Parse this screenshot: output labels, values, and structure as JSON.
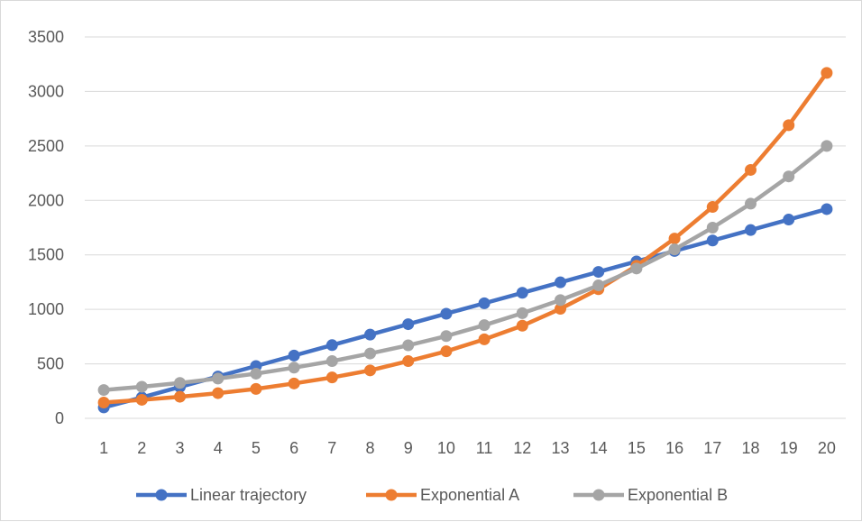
{
  "chart_data": {
    "type": "line",
    "title": "",
    "xlabel": "",
    "ylabel": "",
    "x": [
      1,
      2,
      3,
      4,
      5,
      6,
      7,
      8,
      9,
      10,
      11,
      12,
      13,
      14,
      15,
      16,
      17,
      18,
      19,
      20
    ],
    "ylim": [
      0,
      3500
    ],
    "yticks": [
      0,
      500,
      1000,
      1500,
      2000,
      2500,
      3000,
      3500
    ],
    "grid": "horizontal",
    "legend_position": "bottom",
    "series": [
      {
        "name": "Linear trajectory",
        "color": "#4472C4",
        "values": [
          100,
          192,
          288,
          384,
          480,
          576,
          672,
          768,
          864,
          960,
          1056,
          1152,
          1248,
          1344,
          1440,
          1536,
          1632,
          1728,
          1824,
          1920
        ]
      },
      {
        "name": "Exponential A",
        "color": "#ED7D31",
        "values": [
          145,
          170,
          198,
          231,
          270,
          320,
          375,
          440,
          525,
          615,
          725,
          850,
          1005,
          1185,
          1400,
          1650,
          1940,
          2280,
          2690,
          3170
        ]
      },
      {
        "name": "Exponential B",
        "color": "#A5A5A5",
        "values": [
          260,
          290,
          325,
          365,
          410,
          465,
          525,
          595,
          670,
          755,
          855,
          965,
          1085,
          1220,
          1375,
          1550,
          1750,
          1970,
          2220,
          2500
        ]
      }
    ]
  }
}
